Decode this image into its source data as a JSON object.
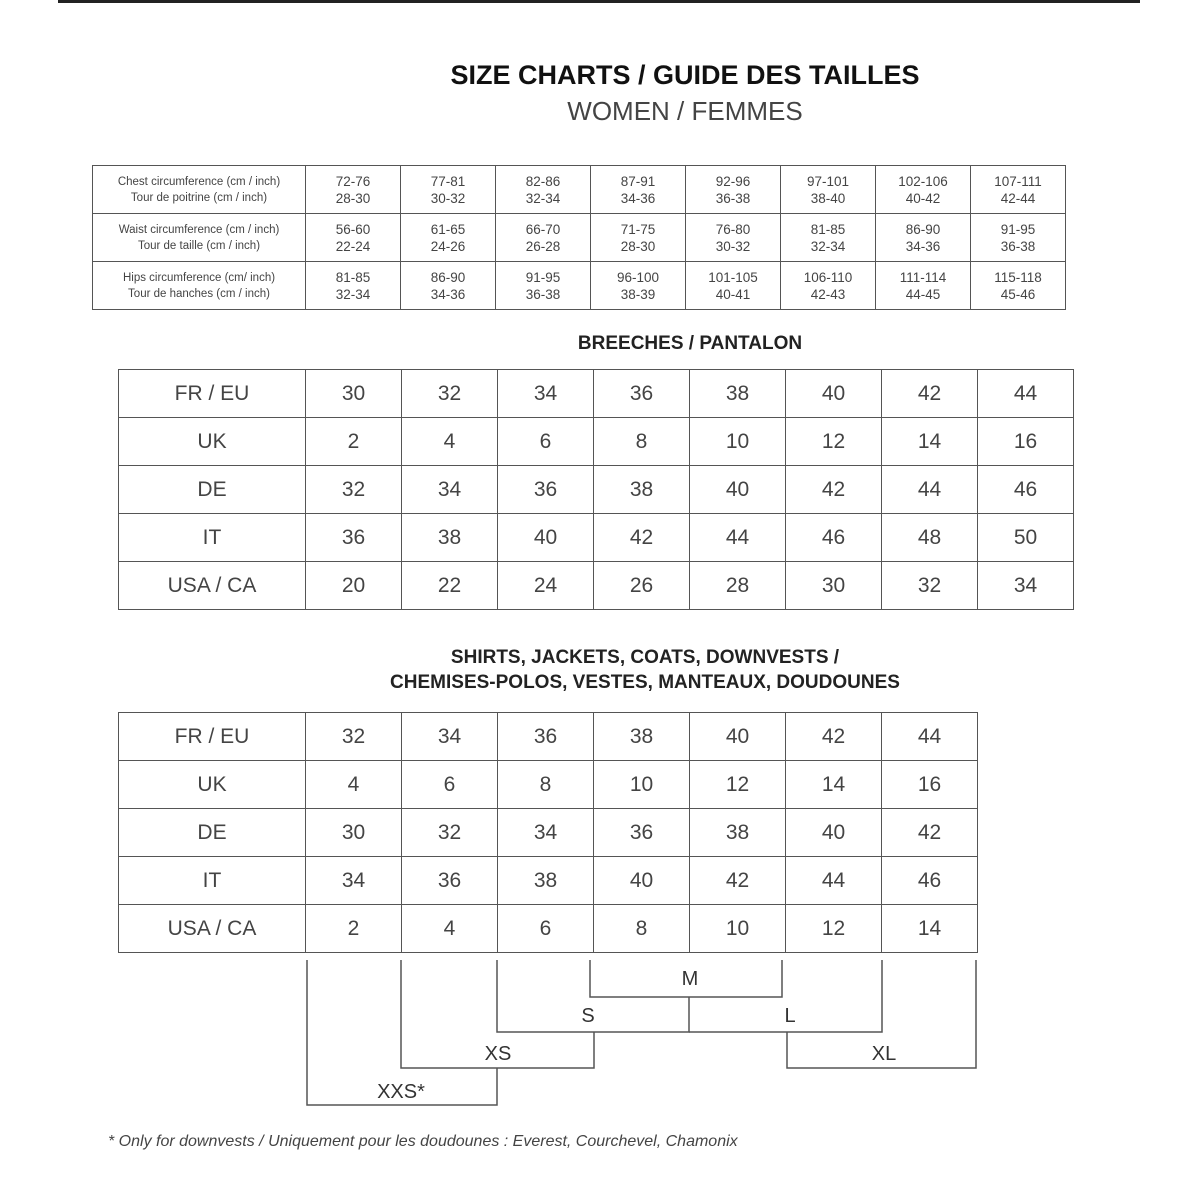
{
  "title": "SIZE CHARTS / GUIDE DES TAILLES",
  "subtitle": "WOMEN / FEMMES",
  "measurements": [
    {
      "label": [
        "Chest circumference (cm / inch)",
        "Tour de poitrine (cm / inch)"
      ],
      "values": [
        [
          "72-76",
          "28-30"
        ],
        [
          "77-81",
          "30-32"
        ],
        [
          "82-86",
          "32-34"
        ],
        [
          "87-91",
          "34-36"
        ],
        [
          "92-96",
          "36-38"
        ],
        [
          "97-101",
          "38-40"
        ],
        [
          "102-106",
          "40-42"
        ],
        [
          "107-111",
          "42-44"
        ]
      ]
    },
    {
      "label": [
        "Waist circumference (cm / inch)",
        "Tour de taille (cm / inch)"
      ],
      "values": [
        [
          "56-60",
          "22-24"
        ],
        [
          "61-65",
          "24-26"
        ],
        [
          "66-70",
          "26-28"
        ],
        [
          "71-75",
          "28-30"
        ],
        [
          "76-80",
          "30-32"
        ],
        [
          "81-85",
          "32-34"
        ],
        [
          "86-90",
          "34-36"
        ],
        [
          "91-95",
          "36-38"
        ]
      ]
    },
    {
      "label": [
        "Hips circumference (cm/ inch)",
        "Tour de hanches (cm / inch)"
      ],
      "values": [
        [
          "81-85",
          "32-34"
        ],
        [
          "86-90",
          "34-36"
        ],
        [
          "91-95",
          "36-38"
        ],
        [
          "96-100",
          "38-39"
        ],
        [
          "101-105",
          "40-41"
        ],
        [
          "106-110",
          "42-43"
        ],
        [
          "111-114",
          "44-45"
        ],
        [
          "115-118",
          "45-46"
        ]
      ]
    }
  ],
  "breeches": {
    "title": "BREECHES / PANTALON",
    "rows": [
      {
        "label": "FR / EU",
        "values": [
          "30",
          "32",
          "34",
          "36",
          "38",
          "40",
          "42",
          "44"
        ]
      },
      {
        "label": "UK",
        "values": [
          "2",
          "4",
          "6",
          "8",
          "10",
          "12",
          "14",
          "16"
        ]
      },
      {
        "label": "DE",
        "values": [
          "32",
          "34",
          "36",
          "38",
          "40",
          "42",
          "44",
          "46"
        ]
      },
      {
        "label": "IT",
        "values": [
          "36",
          "38",
          "40",
          "42",
          "44",
          "46",
          "48",
          "50"
        ]
      },
      {
        "label": "USA / CA",
        "values": [
          "20",
          "22",
          "24",
          "26",
          "28",
          "30",
          "32",
          "34"
        ]
      }
    ]
  },
  "shirts": {
    "title_line1": "SHIRTS, JACKETS, COATS, DOWNVESTS /",
    "title_line2": "CHEMISES-POLOS, VESTES, MANTEAUX, DOUDOUNES",
    "rows": [
      {
        "label": "FR / EU",
        "values": [
          "32",
          "34",
          "36",
          "38",
          "40",
          "42",
          "44"
        ]
      },
      {
        "label": "UK",
        "values": [
          "4",
          "6",
          "8",
          "10",
          "12",
          "14",
          "16"
        ]
      },
      {
        "label": "DE",
        "values": [
          "30",
          "32",
          "34",
          "36",
          "38",
          "40",
          "42"
        ]
      },
      {
        "label": "IT",
        "values": [
          "34",
          "36",
          "38",
          "40",
          "42",
          "44",
          "46"
        ]
      },
      {
        "label": "USA / CA",
        "values": [
          "2",
          "4",
          "6",
          "8",
          "10",
          "12",
          "14"
        ]
      }
    ],
    "sizes": {
      "xxs": "XXS*",
      "xs": "XS",
      "s": "S",
      "m": "M",
      "l": "L",
      "xl": "XL"
    }
  },
  "footnote": "* Only for downvests / Uniquement pour les doudounes : Everest, Courchevel, Chamonix"
}
